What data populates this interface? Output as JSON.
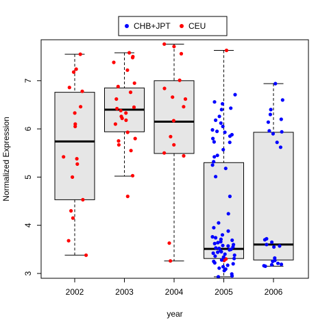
{
  "chart_data": {
    "type": "box",
    "xlabel": "year",
    "ylabel": "Normalized Expression",
    "categories": [
      "2002",
      "2003",
      "2004",
      "2005",
      "2006"
    ],
    "ylim": [
      2.9,
      7.85
    ],
    "yticks": [
      3,
      4,
      5,
      6,
      7
    ],
    "grid": false,
    "legend": {
      "placement": "top-center",
      "entries": [
        {
          "name": "CHB+JPT",
          "color": "#0000ff"
        },
        {
          "name": "CEU",
          "color": "#ff0000"
        }
      ]
    },
    "boxes": [
      {
        "category": "2002",
        "min": 3.38,
        "q1": 4.53,
        "median": 5.74,
        "q3": 6.76,
        "max": 7.55
      },
      {
        "category": "2003",
        "min": 5.02,
        "q1": 5.94,
        "median": 6.4,
        "q3": 6.85,
        "max": 7.58
      },
      {
        "category": "2004",
        "min": 3.26,
        "q1": 5.49,
        "median": 6.15,
        "q3": 7.0,
        "max": 7.76
      },
      {
        "category": "2005",
        "min": 2.93,
        "q1": 3.31,
        "median": 3.51,
        "q3": 5.3,
        "max": 7.63
      },
      {
        "category": "2006",
        "min": 3.15,
        "q1": 3.28,
        "median": 3.6,
        "q3": 5.93,
        "max": 6.94
      }
    ],
    "series": [
      {
        "name": "CEU",
        "color": "#ff0000",
        "points": [
          [
            "2002",
            7.55
          ],
          [
            "2002",
            7.24
          ],
          [
            "2002",
            7.18
          ],
          [
            "2002",
            6.86
          ],
          [
            "2002",
            6.78
          ],
          [
            "2002",
            6.46
          ],
          [
            "2002",
            6.33
          ],
          [
            "2002",
            6.1
          ],
          [
            "2002",
            6.05
          ],
          [
            "2002",
            5.42
          ],
          [
            "2002",
            5.38
          ],
          [
            "2002",
            5.27
          ],
          [
            "2002",
            5.0
          ],
          [
            "2002",
            4.53
          ],
          [
            "2002",
            4.3
          ],
          [
            "2002",
            4.15
          ],
          [
            "2002",
            3.68
          ],
          [
            "2002",
            3.38
          ],
          [
            "2003",
            7.58
          ],
          [
            "2003",
            7.5
          ],
          [
            "2003",
            7.48
          ],
          [
            "2003",
            7.38
          ],
          [
            "2003",
            7.22
          ],
          [
            "2003",
            6.95
          ],
          [
            "2003",
            6.88
          ],
          [
            "2003",
            6.76
          ],
          [
            "2003",
            6.62
          ],
          [
            "2003",
            6.45
          ],
          [
            "2003",
            6.42
          ],
          [
            "2003",
            6.38
          ],
          [
            "2003",
            6.33
          ],
          [
            "2003",
            6.26
          ],
          [
            "2003",
            6.22
          ],
          [
            "2003",
            6.18
          ],
          [
            "2003",
            6.1
          ],
          [
            "2003",
            5.93
          ],
          [
            "2003",
            5.8
          ],
          [
            "2003",
            5.75
          ],
          [
            "2003",
            5.67
          ],
          [
            "2003",
            5.55
          ],
          [
            "2003",
            5.03
          ],
          [
            "2003",
            4.6
          ],
          [
            "2004",
            7.76
          ],
          [
            "2004",
            7.71
          ],
          [
            "2004",
            7.56
          ],
          [
            "2004",
            7.01
          ],
          [
            "2004",
            6.84
          ],
          [
            "2004",
            6.66
          ],
          [
            "2004",
            6.62
          ],
          [
            "2004",
            6.46
          ],
          [
            "2004",
            6.17
          ],
          [
            "2004",
            5.84
          ],
          [
            "2004",
            5.67
          ],
          [
            "2004",
            5.5
          ],
          [
            "2004",
            5.44
          ],
          [
            "2004",
            3.63
          ],
          [
            "2004",
            3.26
          ],
          [
            "2005",
            7.63
          ],
          [
            "2005",
            3.3
          ],
          [
            "2005",
            3.27
          ]
        ]
      },
      {
        "name": "CHB+JPT",
        "color": "#0000ff",
        "points": [
          [
            "2005",
            6.71
          ],
          [
            "2005",
            6.56
          ],
          [
            "2005",
            6.52
          ],
          [
            "2005",
            6.43
          ],
          [
            "2005",
            6.4
          ],
          [
            "2005",
            6.26
          ],
          [
            "2005",
            6.18
          ],
          [
            "2005",
            6.12
          ],
          [
            "2005",
            6.05
          ],
          [
            "2005",
            5.98
          ],
          [
            "2005",
            5.95
          ],
          [
            "2005",
            5.93
          ],
          [
            "2005",
            5.88
          ],
          [
            "2005",
            5.85
          ],
          [
            "2005",
            5.8
          ],
          [
            "2005",
            5.73
          ],
          [
            "2005",
            5.72
          ],
          [
            "2005",
            5.57
          ],
          [
            "2005",
            5.45
          ],
          [
            "2005",
            5.42
          ],
          [
            "2005",
            5.32
          ],
          [
            "2005",
            5.25
          ],
          [
            "2005",
            5.18
          ],
          [
            "2005",
            5.01
          ],
          [
            "2005",
            4.6
          ],
          [
            "2005",
            4.24
          ],
          [
            "2005",
            4.05
          ],
          [
            "2005",
            3.95
          ],
          [
            "2005",
            3.88
          ],
          [
            "2005",
            3.8
          ],
          [
            "2005",
            3.76
          ],
          [
            "2005",
            3.74
          ],
          [
            "2005",
            3.71
          ],
          [
            "2005",
            3.69
          ],
          [
            "2005",
            3.66
          ],
          [
            "2005",
            3.64
          ],
          [
            "2005",
            3.62
          ],
          [
            "2005",
            3.6
          ],
          [
            "2005",
            3.58
          ],
          [
            "2005",
            3.57
          ],
          [
            "2005",
            3.55
          ],
          [
            "2005",
            3.53
          ],
          [
            "2005",
            3.52
          ],
          [
            "2005",
            3.5
          ],
          [
            "2005",
            3.49
          ],
          [
            "2005",
            3.47
          ],
          [
            "2005",
            3.45
          ],
          [
            "2005",
            3.44
          ],
          [
            "2005",
            3.42
          ],
          [
            "2005",
            3.4
          ],
          [
            "2005",
            3.38
          ],
          [
            "2005",
            3.36
          ],
          [
            "2005",
            3.34
          ],
          [
            "2005",
            3.31
          ],
          [
            "2005",
            3.28
          ],
          [
            "2005",
            3.25
          ],
          [
            "2005",
            3.22
          ],
          [
            "2005",
            3.2
          ],
          [
            "2005",
            3.17
          ],
          [
            "2005",
            3.14
          ],
          [
            "2005",
            3.11
          ],
          [
            "2005",
            3.09
          ],
          [
            "2005",
            3.06
          ],
          [
            "2005",
            2.99
          ],
          [
            "2005",
            2.95
          ],
          [
            "2005",
            2.93
          ],
          [
            "2006",
            6.94
          ],
          [
            "2006",
            6.6
          ],
          [
            "2006",
            6.4
          ],
          [
            "2006",
            6.3
          ],
          [
            "2006",
            6.2
          ],
          [
            "2006",
            6.14
          ],
          [
            "2006",
            5.96
          ],
          [
            "2006",
            5.94
          ],
          [
            "2006",
            5.9
          ],
          [
            "2006",
            5.72
          ],
          [
            "2006",
            5.62
          ],
          [
            "2006",
            3.72
          ],
          [
            "2006",
            3.7
          ],
          [
            "2006",
            3.65
          ],
          [
            "2006",
            3.6
          ],
          [
            "2006",
            3.57
          ],
          [
            "2006",
            3.55
          ],
          [
            "2006",
            3.32
          ],
          [
            "2006",
            3.27
          ],
          [
            "2006",
            3.25
          ],
          [
            "2006",
            3.21
          ],
          [
            "2006",
            3.19
          ],
          [
            "2006",
            3.18
          ],
          [
            "2006",
            3.16
          ],
          [
            "2006",
            3.15
          ]
        ]
      }
    ]
  }
}
